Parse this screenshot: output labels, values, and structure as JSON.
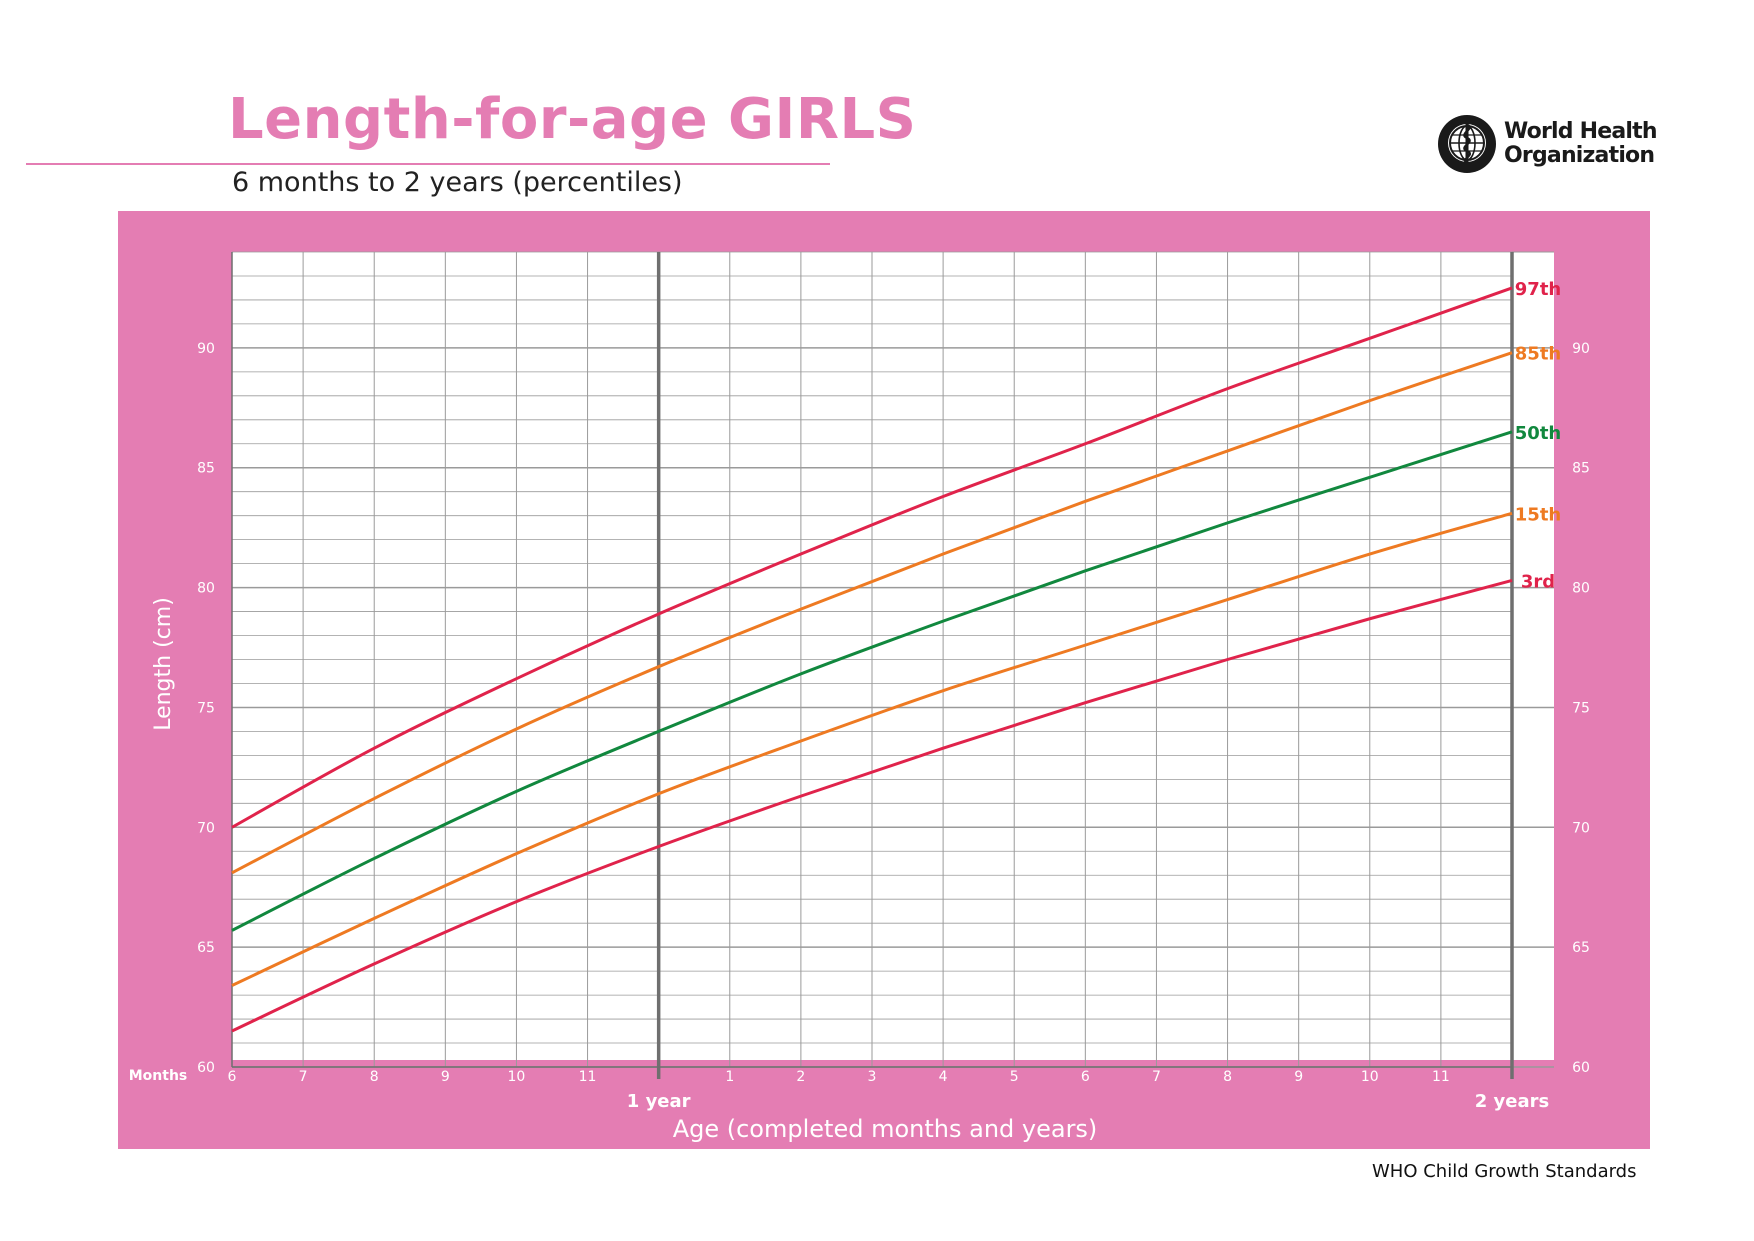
{
  "header": {
    "title": "Length-for-age GIRLS",
    "subtitle": "6 months to 2 years (percentiles)"
  },
  "logo": {
    "icon": "who-emblem-icon",
    "line1": "World Health",
    "line2": "Organization"
  },
  "footer": {
    "text": "WHO Child Growth Standards"
  },
  "colors": {
    "panel": "#E47DB3",
    "grid": "#9a9a9a",
    "p97": "#E0234B",
    "p85": "#EE7A22",
    "p50": "#11883E",
    "p15": "#EE7A22",
    "p3": "#E0234B"
  },
  "chart_data": {
    "type": "line",
    "title": "Length-for-age GIRLS",
    "subtitle": "6 months to 2 years (percentiles)",
    "xlabel": "Age (completed months and years)",
    "ylabel": "Length (cm)",
    "x_unit_label": "Months",
    "xlim": [
      6,
      24
    ],
    "ylim": [
      60,
      94
    ],
    "y_ticks": [
      60,
      65,
      70,
      75,
      80,
      85,
      90
    ],
    "y_minor_step": 1,
    "x_ticks": [
      {
        "x": 6,
        "label": "6"
      },
      {
        "x": 7,
        "label": "7"
      },
      {
        "x": 8,
        "label": "8"
      },
      {
        "x": 9,
        "label": "9"
      },
      {
        "x": 10,
        "label": "10"
      },
      {
        "x": 11,
        "label": "11"
      },
      {
        "x": 13,
        "label": "1"
      },
      {
        "x": 14,
        "label": "2"
      },
      {
        "x": 15,
        "label": "3"
      },
      {
        "x": 16,
        "label": "4"
      },
      {
        "x": 17,
        "label": "5"
      },
      {
        "x": 18,
        "label": "6"
      },
      {
        "x": 19,
        "label": "7"
      },
      {
        "x": 20,
        "label": "8"
      },
      {
        "x": 21,
        "label": "9"
      },
      {
        "x": 22,
        "label": "10"
      },
      {
        "x": 23,
        "label": "11"
      }
    ],
    "year_markers": [
      {
        "x": 12,
        "label": "1 year"
      },
      {
        "x": 24,
        "label": "2 years"
      }
    ],
    "grid": true,
    "x": [
      6,
      8,
      10,
      12,
      14,
      16,
      18,
      20,
      22,
      24
    ],
    "series": [
      {
        "name": "97th",
        "color": "#E0234B",
        "values": [
          70.0,
          73.3,
          76.2,
          78.9,
          81.4,
          83.8,
          86.0,
          88.3,
          90.4,
          92.5
        ]
      },
      {
        "name": "85th",
        "color": "#EE7A22",
        "values": [
          68.1,
          71.2,
          74.1,
          76.7,
          79.1,
          81.4,
          83.6,
          85.7,
          87.8,
          89.8
        ]
      },
      {
        "name": "50th",
        "color": "#11883E",
        "values": [
          65.7,
          68.7,
          71.5,
          74.0,
          76.4,
          78.6,
          80.7,
          82.7,
          84.6,
          86.5
        ]
      },
      {
        "name": "15th",
        "color": "#EE7A22",
        "values": [
          63.4,
          66.2,
          68.9,
          71.4,
          73.6,
          75.7,
          77.6,
          79.5,
          81.4,
          83.1
        ]
      },
      {
        "name": "3rd",
        "color": "#E0234B",
        "values": [
          61.5,
          64.3,
          66.9,
          69.2,
          71.3,
          73.3,
          75.2,
          77.0,
          78.7,
          80.3
        ]
      }
    ]
  }
}
